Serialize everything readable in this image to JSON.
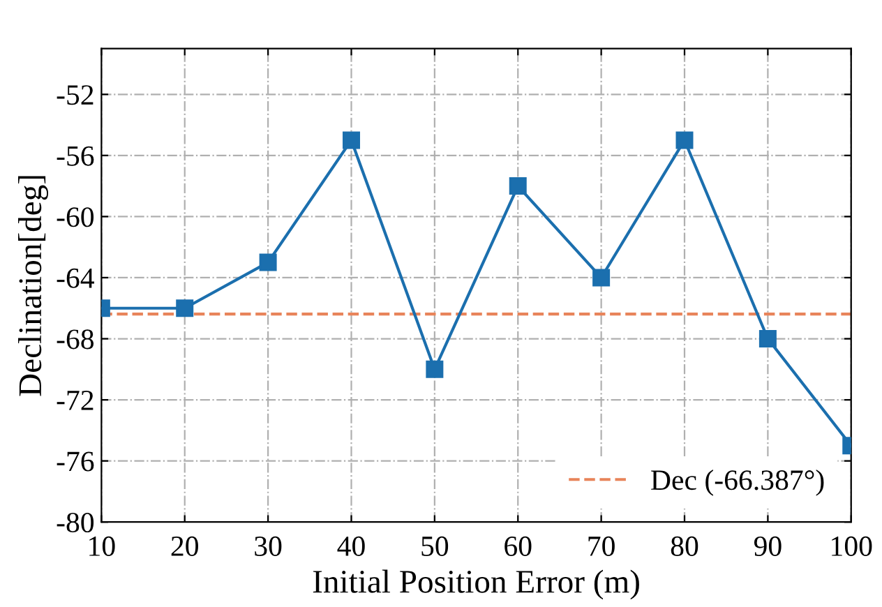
{
  "chart_data": {
    "type": "line",
    "xlabel": "Initial Position Error (m)",
    "ylabel": "Declination[deg]",
    "x": [
      10,
      20,
      30,
      40,
      50,
      60,
      70,
      80,
      90,
      100
    ],
    "series": [
      {
        "color": "#1b6fae",
        "values": [
          -66,
          -66,
          -63,
          -55,
          -70,
          -58,
          -64,
          -55,
          -68,
          -75
        ]
      }
    ],
    "xlim": [
      10,
      100
    ],
    "xticks": [
      10,
      20,
      30,
      40,
      50,
      60,
      70,
      80,
      90,
      100
    ],
    "ylim": [
      -80,
      -49
    ],
    "yticks": [
      -80,
      -76,
      -72,
      -68,
      -64,
      -60,
      -56,
      -52
    ],
    "ref_lines": [
      {
        "axis": "y",
        "value": -66.387,
        "label": "Dec (-66.387°)",
        "color": "#e8845a",
        "line_style": "dashed"
      }
    ],
    "grid": true,
    "legend": "bottom right",
    "marker": "square",
    "line_style": "solid"
  }
}
